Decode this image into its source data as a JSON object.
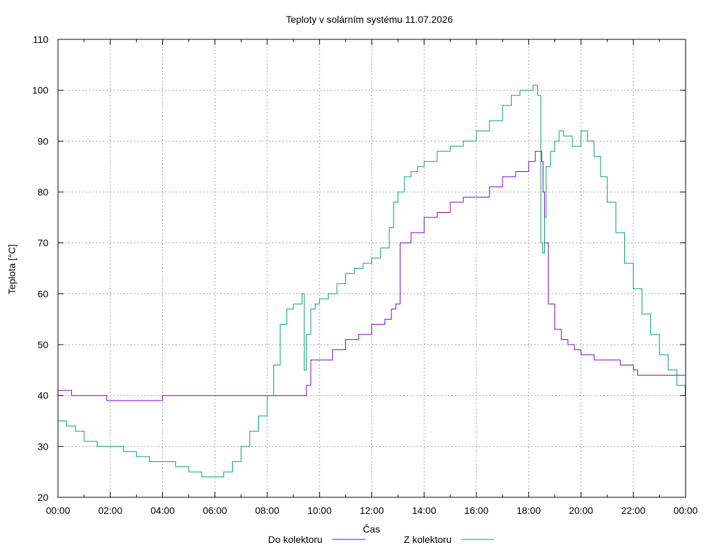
{
  "chart_data": {
    "type": "line",
    "title": "Teploty v solárním systému 11.07.2026",
    "xlabel": "Čas",
    "ylabel": "Teplota [°C]",
    "ylim": [
      20,
      110
    ],
    "xlim": [
      "00:00",
      "24:00"
    ],
    "grid": true,
    "legend_position": "bottom-center",
    "y_ticks": [
      20,
      30,
      40,
      50,
      60,
      70,
      80,
      90,
      100,
      110
    ],
    "x_ticks": [
      "00:00",
      "02:00",
      "04:00",
      "06:00",
      "08:00",
      "10:00",
      "12:00",
      "14:00",
      "16:00",
      "18:00",
      "20:00",
      "22:00",
      "00:00"
    ],
    "series": [
      {
        "name": "Do kolektoru",
        "color": "#8000c0",
        "x": [
          "00:00",
          "00:30",
          "00:31",
          "01:50",
          "01:52",
          "03:55",
          "04:00",
          "09:25",
          "09:30",
          "09:40",
          "10:00",
          "10:30",
          "11:00",
          "11:30",
          "12:00",
          "12:30",
          "12:45",
          "12:55",
          "13:05",
          "13:30",
          "14:00",
          "14:30",
          "15:00",
          "15:30",
          "16:00",
          "16:30",
          "17:00",
          "17:30",
          "18:00",
          "18:15",
          "18:25",
          "18:30",
          "18:33",
          "18:36",
          "18:45",
          "19:00",
          "19:15",
          "19:30",
          "19:45",
          "20:00",
          "20:30",
          "21:00",
          "21:30",
          "22:00",
          "22:10",
          "23:00",
          "23:59"
        ],
        "y": [
          41,
          41,
          40,
          40,
          39,
          39,
          40,
          40,
          42,
          47,
          47,
          49,
          51,
          52,
          54,
          55,
          57,
          58,
          70,
          72,
          75,
          76,
          78,
          79,
          79,
          81,
          83,
          84,
          86,
          88,
          88,
          86,
          80,
          70,
          58,
          53,
          51,
          50,
          49,
          48,
          47,
          47,
          46,
          45,
          44,
          44,
          44
        ]
      },
      {
        "name": "Z kolektoru",
        "color": "#00a070",
        "x": [
          "00:00",
          "00:20",
          "00:40",
          "01:00",
          "01:30",
          "02:00",
          "02:30",
          "03:00",
          "03:30",
          "04:00",
          "04:30",
          "05:00",
          "05:30",
          "06:00",
          "06:20",
          "06:40",
          "07:00",
          "07:20",
          "07:40",
          "08:00",
          "08:15",
          "08:30",
          "08:45",
          "09:00",
          "09:20",
          "09:25",
          "09:30",
          "09:40",
          "09:50",
          "10:00",
          "10:20",
          "10:40",
          "11:00",
          "11:20",
          "11:40",
          "12:00",
          "12:20",
          "12:40",
          "12:50",
          "13:00",
          "13:15",
          "13:30",
          "13:45",
          "14:00",
          "14:30",
          "15:00",
          "15:30",
          "16:00",
          "16:30",
          "17:00",
          "17:20",
          "17:40",
          "18:00",
          "18:10",
          "18:20",
          "18:28",
          "18:32",
          "18:36",
          "18:40",
          "18:50",
          "19:00",
          "19:10",
          "19:20",
          "19:40",
          "20:00",
          "20:15",
          "20:30",
          "20:45",
          "21:00",
          "21:20",
          "21:40",
          "22:00",
          "22:20",
          "22:40",
          "23:00",
          "23:20",
          "23:40",
          "23:59"
        ],
        "y": [
          35,
          34,
          33,
          31,
          30,
          30,
          29,
          28,
          27,
          27,
          26,
          25,
          24,
          24,
          25,
          27,
          30,
          33,
          36,
          40,
          46,
          54,
          57,
          58,
          60,
          45,
          52,
          57,
          58,
          59,
          60,
          62,
          64,
          65,
          66,
          67,
          69,
          73,
          78,
          80,
          83,
          84,
          85,
          86,
          88,
          89,
          90,
          92,
          94,
          97,
          99,
          100,
          100,
          101,
          99,
          70,
          68,
          75,
          85,
          88,
          90,
          92,
          91,
          89,
          92,
          90,
          87,
          83,
          78,
          72,
          66,
          61,
          56,
          52,
          48,
          45,
          42,
          40
        ]
      }
    ]
  }
}
